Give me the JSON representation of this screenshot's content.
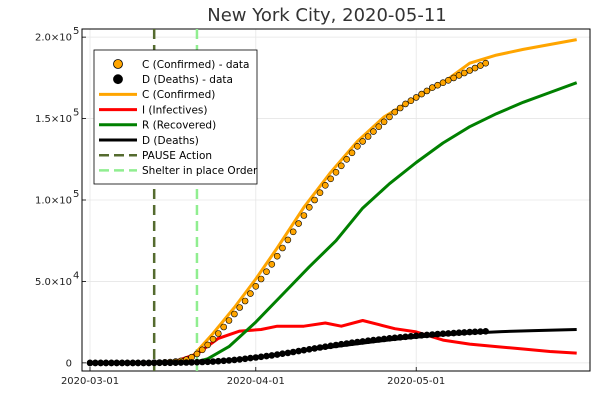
{
  "chart_data": {
    "type": "line",
    "title": "New York City, 2020-05-11",
    "xlabel": "",
    "ylabel": "",
    "x_axis": {
      "type": "date",
      "start": "2020-03-01",
      "end": "2020-06-01",
      "ticks": [
        "2020-03-01",
        "2020-04-01",
        "2020-05-01"
      ]
    },
    "y_axis": {
      "ylim": [
        -5000,
        205000
      ],
      "ticks": [
        {
          "value": 0,
          "base": "0",
          "exp": ""
        },
        {
          "value": 50000,
          "base": "5.0×10",
          "exp": "4"
        },
        {
          "value": 100000,
          "base": "1.0×10",
          "exp": "5"
        },
        {
          "value": 150000,
          "base": "1.5×10",
          "exp": "5"
        },
        {
          "value": 200000,
          "base": "2.0×10",
          "exp": "5"
        }
      ]
    },
    "grid": true,
    "legend_position": "top-left",
    "vlines": [
      {
        "name": "PAUSE Action",
        "x": "2020-03-13",
        "color": "#556b2f",
        "style": "dashed"
      },
      {
        "name": "Shelter in place Order",
        "x": "2020-03-21",
        "color": "#90ee90",
        "style": "dashed"
      }
    ],
    "series": [
      {
        "name": "C (Confirmed) - data",
        "kind": "scatter",
        "color": "#ffa500",
        "start": "2020-03-01",
        "values": [
          0,
          0,
          0,
          0,
          0,
          0,
          0,
          0,
          0,
          0,
          0,
          0,
          100,
          200,
          350,
          550,
          800,
          1200,
          2000,
          3500,
          5500,
          8000,
          11000,
          14500,
          18000,
          22000,
          26000,
          30000,
          34000,
          38000,
          42500,
          47000,
          51500,
          56000,
          60500,
          65500,
          70500,
          75500,
          80500,
          85500,
          90500,
          95500,
          100000,
          104500,
          109000,
          113000,
          117000,
          121000,
          125000,
          129000,
          133000,
          136000,
          139000,
          142000,
          145000,
          148000,
          151000,
          154000,
          156500,
          159000,
          161000,
          163000,
          165000,
          167000,
          169000,
          170500,
          172000,
          173500,
          175000,
          176500,
          178000,
          179500,
          181000,
          182500,
          184000
        ]
      },
      {
        "name": "D (Deaths) - data",
        "kind": "scatter",
        "color": "#000000",
        "start": "2020-03-01",
        "values": [
          0,
          0,
          0,
          0,
          0,
          0,
          0,
          0,
          0,
          0,
          0,
          0,
          10,
          20,
          40,
          60,
          100,
          150,
          200,
          280,
          380,
          500,
          650,
          800,
          1000,
          1250,
          1500,
          1800,
          2150,
          2500,
          2900,
          3300,
          3700,
          4150,
          4600,
          5100,
          5600,
          6100,
          6650,
          7200,
          7750,
          8300,
          8850,
          9400,
          9950,
          10450,
          10950,
          11450,
          11900,
          12350,
          12800,
          13200,
          13600,
          14000,
          14350,
          14700,
          15050,
          15400,
          15700,
          16000,
          16300,
          16600,
          16900,
          17150,
          17400,
          17650,
          17900,
          18100,
          18300,
          18500,
          18700,
          18900,
          19050,
          19200,
          19350
        ]
      },
      {
        "name": "C (Confirmed)",
        "kind": "line",
        "color": "#ffa500",
        "x": [
          "2020-03-01",
          "2020-03-12",
          "2020-03-16",
          "2020-03-20",
          "2020-03-24",
          "2020-03-28",
          "2020-04-01",
          "2020-04-05",
          "2020-04-10",
          "2020-04-15",
          "2020-04-20",
          "2020-04-25",
          "2020-05-01",
          "2020-05-06",
          "2020-05-11",
          "2020-05-16",
          "2020-05-21",
          "2020-05-26",
          "2020-05-31"
        ],
        "values": [
          0,
          0,
          550,
          3500,
          18000,
          34000,
          51500,
          70500,
          95500,
          117000,
          136000,
          151000,
          163000,
          172000,
          184000,
          189000,
          192500,
          195500,
          198500
        ]
      },
      {
        "name": "I (Infectives)",
        "kind": "line",
        "color": "#ff0000",
        "x": [
          "2020-03-01",
          "2020-03-12",
          "2020-03-17",
          "2020-03-21",
          "2020-03-25",
          "2020-03-29",
          "2020-04-02",
          "2020-04-05",
          "2020-04-10",
          "2020-04-14",
          "2020-04-17",
          "2020-04-21",
          "2020-04-24",
          "2020-04-27",
          "2020-05-01",
          "2020-05-06",
          "2020-05-11",
          "2020-05-16",
          "2020-05-21",
          "2020-05-26",
          "2020-05-31"
        ],
        "values": [
          0,
          0,
          1000,
          5500,
          15000,
          19500,
          20500,
          22500,
          22500,
          24500,
          22500,
          26000,
          23500,
          21000,
          19000,
          14000,
          11500,
          10000,
          8500,
          7000,
          6000
        ]
      },
      {
        "name": "R (Recovered)",
        "kind": "line",
        "color": "#008000",
        "x": [
          "2020-03-01",
          "2020-03-20",
          "2020-03-23",
          "2020-03-27",
          "2020-04-01",
          "2020-04-06",
          "2020-04-11",
          "2020-04-16",
          "2020-04-21",
          "2020-04-26",
          "2020-05-01",
          "2020-05-06",
          "2020-05-11",
          "2020-05-16",
          "2020-05-21",
          "2020-05-26",
          "2020-05-31"
        ],
        "values": [
          0,
          0,
          2500,
          10000,
          25000,
          42000,
          59000,
          75000,
          95000,
          110000,
          123000,
          135000,
          145000,
          153000,
          160000,
          166000,
          172000
        ]
      },
      {
        "name": "D (Deaths)",
        "kind": "line",
        "color": "#000000",
        "x": [
          "2020-03-01",
          "2020-03-12",
          "2020-03-18",
          "2020-03-24",
          "2020-03-30",
          "2020-04-05",
          "2020-04-11",
          "2020-04-17",
          "2020-04-23",
          "2020-04-29",
          "2020-05-05",
          "2020-05-11",
          "2020-05-17",
          "2020-05-23",
          "2020-05-31"
        ],
        "values": [
          0,
          0,
          200,
          800,
          2500,
          5000,
          8000,
          10500,
          13000,
          15200,
          17000,
          18300,
          19200,
          19800,
          20500
        ]
      }
    ]
  }
}
